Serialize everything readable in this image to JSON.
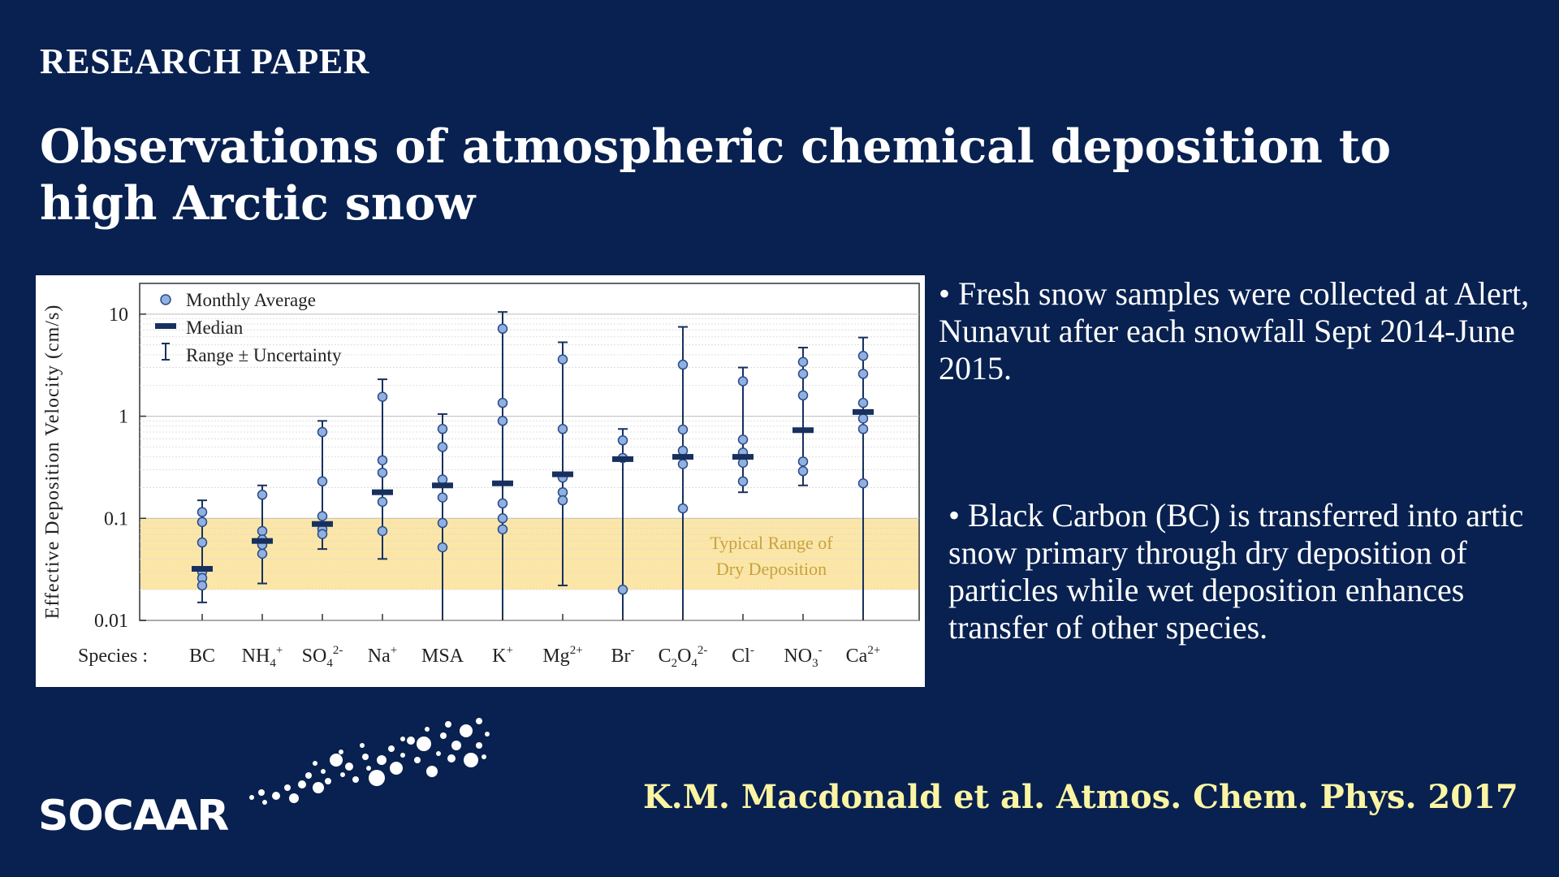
{
  "header": {
    "eyebrow": "RESEARCH PAPER",
    "title": "Observations of atmospheric chemical deposition to high Arctic snow"
  },
  "bullets": [
    "• Fresh snow samples were collected at Alert, Nunavut after each snowfall Sept 2014-June 2015.",
    "• Black Carbon (BC) is transferred into artic snow primary through dry deposition of particles while wet deposition enhances transfer of other species."
  ],
  "citation": "K.M. Macdonald et al. Atmos. Chem. Phys. 2017",
  "logo": {
    "text": "SOCAAR",
    "icon": "dots-swirl-icon"
  },
  "colors": {
    "background": "#082150",
    "citation": "#fbf4a3",
    "band": "#fbe6a8",
    "marker": "#8fb0e0",
    "median": "#17305e",
    "band_label": "#c8a23c"
  },
  "chart_data": {
    "type": "scatter",
    "yscale": "log",
    "ylim": [
      0.01,
      20
    ],
    "ylabel": "Effective Deposition Velocity (cm/s)",
    "xaxis_prefix": "Species :",
    "yticks": [
      {
        "value": 10,
        "label": "10"
      },
      {
        "value": 1,
        "label": "1"
      },
      {
        "value": 0.1,
        "label": "0.1"
      },
      {
        "value": 0.01,
        "label": "0.01"
      }
    ],
    "legend": {
      "position": "top-left",
      "entries": [
        "Monthly Average",
        "Median",
        "Range ± Uncertainty"
      ]
    },
    "band": {
      "low": 0.02,
      "high": 0.1,
      "label_line1": "Typical Range of",
      "label_line2": "Dry Deposition"
    },
    "species": [
      {
        "base": "BC",
        "sub": "",
        "sup": "",
        "median": 0.032,
        "range": [
          0.015,
          0.15
        ],
        "points": [
          0.115,
          0.092,
          0.058,
          0.03,
          0.026,
          0.022
        ]
      },
      {
        "base": "NH",
        "sub": "4",
        "sup": "+",
        "median": 0.06,
        "range": [
          0.023,
          0.21
        ],
        "points": [
          0.17,
          0.075,
          0.062,
          0.055,
          0.045
        ]
      },
      {
        "base": "SO",
        "sub": "4",
        "sup": "2-",
        "median": 0.088,
        "range": [
          0.05,
          0.9
        ],
        "points": [
          0.7,
          0.23,
          0.105,
          0.078,
          0.07
        ]
      },
      {
        "base": "Na",
        "sub": "",
        "sup": "+",
        "median": 0.18,
        "range": [
          0.04,
          2.3
        ],
        "points": [
          1.55,
          0.37,
          0.28,
          0.145,
          0.075
        ]
      },
      {
        "base": "MSA",
        "sub": "",
        "sup": "",
        "median": 0.21,
        "range": [
          0.01,
          1.05
        ],
        "points": [
          0.75,
          0.5,
          0.24,
          0.16,
          0.09,
          0.052
        ]
      },
      {
        "base": "K",
        "sub": "",
        "sup": "+",
        "median": 0.22,
        "range": [
          0.01,
          10.5
        ],
        "points": [
          7.2,
          1.35,
          0.9,
          0.14,
          0.1,
          0.078
        ]
      },
      {
        "base": "Mg",
        "sub": "",
        "sup": "2+",
        "median": 0.27,
        "range": [
          0.022,
          5.3
        ],
        "points": [
          3.6,
          0.75,
          0.25,
          0.18,
          0.15
        ]
      },
      {
        "base": "Br",
        "sub": "",
        "sup": "-",
        "median": 0.38,
        "range": [
          0.01,
          0.75
        ],
        "points": [
          0.58,
          0.39,
          0.02
        ]
      },
      {
        "base": "C",
        "sub": "2",
        "mid": "O",
        "sub2": "4",
        "sup": "2-",
        "median": 0.4,
        "range": [
          0.01,
          7.5
        ],
        "points": [
          3.2,
          0.74,
          0.46,
          0.34,
          0.125
        ]
      },
      {
        "base": "Cl",
        "sub": "",
        "sup": "-",
        "median": 0.4,
        "range": [
          0.18,
          3.0
        ],
        "points": [
          2.2,
          0.59,
          0.44,
          0.35,
          0.23
        ]
      },
      {
        "base": "NO",
        "sub": "3",
        "sup": "-",
        "median": 0.73,
        "range": [
          0.21,
          4.7
        ],
        "points": [
          3.4,
          2.6,
          1.6,
          0.36,
          0.29
        ]
      },
      {
        "base": "Ca",
        "sub": "",
        "sup": "2+",
        "median": 1.1,
        "range": [
          0.01,
          5.9
        ],
        "points": [
          3.9,
          2.6,
          1.35,
          0.95,
          0.75,
          0.22
        ]
      }
    ]
  }
}
